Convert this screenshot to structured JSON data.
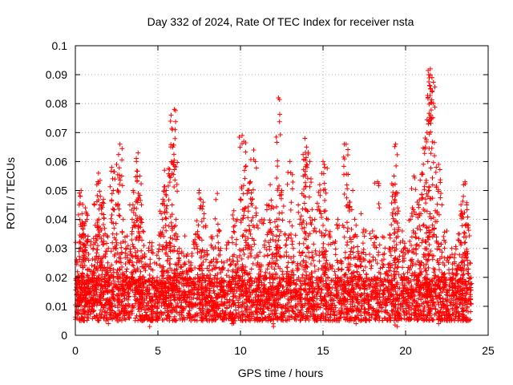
{
  "chart_data": {
    "type": "scatter",
    "title": "Day 332 of 2024, Rate Of TEC Index for receiver nsta",
    "xlabel": "GPS time / hours",
    "ylabel": "ROTI / TECUs",
    "xlim": [
      0,
      25
    ],
    "ylim": [
      0,
      0.1
    ],
    "x_ticks": [
      0,
      5,
      10,
      15,
      20,
      25
    ],
    "x_tick_labels": [
      "0",
      "5",
      "10",
      "15",
      "20",
      "25"
    ],
    "y_ticks": [
      0,
      0.01,
      0.02,
      0.03,
      0.04,
      0.05,
      0.06,
      0.07,
      0.08,
      0.09,
      0.1
    ],
    "y_tick_labels": [
      "0",
      "0.01",
      "0.02",
      "0.03",
      "0.04",
      "0.05",
      "0.06",
      "0.07",
      "0.08",
      "0.09",
      "0.1"
    ],
    "grid": true,
    "marker": "+",
    "series": [
      {
        "name": "ROTI",
        "color": "#ff0000",
        "points": [
          [
            0.1,
            0.011
          ],
          [
            0.2,
            0.018
          ],
          [
            0.25,
            0.03
          ],
          [
            0.3,
            0.048
          ],
          [
            0.35,
            0.05
          ],
          [
            0.4,
            0.042
          ],
          [
            0.5,
            0.035
          ],
          [
            0.6,
            0.044
          ],
          [
            0.7,
            0.04
          ],
          [
            0.8,
            0.028
          ],
          [
            1.0,
            0.022
          ],
          [
            1.2,
            0.038
          ],
          [
            1.3,
            0.052
          ],
          [
            1.4,
            0.056
          ],
          [
            1.5,
            0.045
          ],
          [
            1.6,
            0.042
          ],
          [
            1.7,
            0.047
          ],
          [
            1.8,
            0.035
          ],
          [
            2.0,
            0.03
          ],
          [
            2.2,
            0.058
          ],
          [
            2.3,
            0.05
          ],
          [
            2.5,
            0.059
          ],
          [
            2.7,
            0.066
          ],
          [
            2.9,
            0.04
          ],
          [
            3.1,
            0.03
          ],
          [
            3.3,
            0.045
          ],
          [
            3.5,
            0.05
          ],
          [
            3.7,
            0.06
          ],
          [
            3.8,
            0.063
          ],
          [
            3.9,
            0.055
          ],
          [
            4.0,
            0.04
          ],
          [
            4.2,
            0.028
          ],
          [
            4.5,
            0.032
          ],
          [
            4.8,
            0.025
          ],
          [
            5.0,
            0.018
          ],
          [
            5.2,
            0.042
          ],
          [
            5.3,
            0.047
          ],
          [
            5.4,
            0.057
          ],
          [
            5.5,
            0.05
          ],
          [
            5.7,
            0.032
          ],
          [
            5.8,
            0.076
          ],
          [
            5.9,
            0.065
          ],
          [
            6.0,
            0.078
          ],
          [
            6.1,
            0.04
          ],
          [
            6.3,
            0.03
          ],
          [
            6.5,
            0.022
          ],
          [
            6.8,
            0.028
          ],
          [
            7.0,
            0.025
          ],
          [
            7.3,
            0.035
          ],
          [
            7.5,
            0.05
          ],
          [
            7.6,
            0.047
          ],
          [
            7.8,
            0.042
          ],
          [
            8.0,
            0.028
          ],
          [
            8.3,
            0.034
          ],
          [
            8.6,
            0.049
          ],
          [
            8.8,
            0.03
          ],
          [
            9.0,
            0.025
          ],
          [
            9.3,
            0.032
          ],
          [
            9.6,
            0.043
          ],
          [
            9.8,
            0.04
          ],
          [
            10.1,
            0.069
          ],
          [
            10.2,
            0.067
          ],
          [
            10.3,
            0.044
          ],
          [
            10.5,
            0.05
          ],
          [
            10.6,
            0.053
          ],
          [
            10.8,
            0.064
          ],
          [
            11.0,
            0.038
          ],
          [
            11.3,
            0.04
          ],
          [
            11.6,
            0.045
          ],
          [
            11.8,
            0.052
          ],
          [
            12.0,
            0.044
          ],
          [
            12.2,
            0.04
          ],
          [
            12.3,
            0.082
          ],
          [
            12.5,
            0.05
          ],
          [
            12.7,
            0.035
          ],
          [
            13.0,
            0.06
          ],
          [
            13.2,
            0.03
          ],
          [
            13.5,
            0.045
          ],
          [
            13.8,
            0.055
          ],
          [
            13.9,
            0.068
          ],
          [
            14.0,
            0.065
          ],
          [
            14.2,
            0.06
          ],
          [
            14.5,
            0.04
          ],
          [
            14.8,
            0.052
          ],
          [
            15.0,
            0.06
          ],
          [
            15.1,
            0.058
          ],
          [
            15.3,
            0.04
          ],
          [
            15.6,
            0.032
          ],
          [
            15.9,
            0.04
          ],
          [
            16.2,
            0.038
          ],
          [
            16.4,
            0.066
          ],
          [
            16.5,
            0.045
          ],
          [
            16.6,
            0.046
          ],
          [
            16.8,
            0.05
          ],
          [
            17.0,
            0.038
          ],
          [
            17.3,
            0.042
          ],
          [
            17.6,
            0.036
          ],
          [
            18.0,
            0.036
          ],
          [
            18.3,
            0.053
          ],
          [
            18.6,
            0.034
          ],
          [
            19.0,
            0.03
          ],
          [
            19.2,
            0.048
          ],
          [
            19.3,
            0.055
          ],
          [
            19.4,
            0.066
          ],
          [
            19.5,
            0.042
          ],
          [
            19.8,
            0.036
          ],
          [
            20.0,
            0.03
          ],
          [
            20.3,
            0.04
          ],
          [
            20.5,
            0.055
          ],
          [
            20.7,
            0.046
          ],
          [
            20.8,
            0.045
          ],
          [
            21.0,
            0.056
          ],
          [
            21.2,
            0.065
          ],
          [
            21.3,
            0.07
          ],
          [
            21.4,
            0.09
          ],
          [
            21.5,
            0.092
          ],
          [
            21.6,
            0.089
          ],
          [
            21.8,
            0.043
          ],
          [
            22.0,
            0.059
          ],
          [
            22.2,
            0.045
          ],
          [
            22.5,
            0.036
          ],
          [
            22.8,
            0.03
          ],
          [
            23.0,
            0.028
          ],
          [
            23.2,
            0.035
          ],
          [
            23.4,
            0.042
          ],
          [
            23.5,
            0.048
          ],
          [
            23.6,
            0.053
          ],
          [
            23.7,
            0.045
          ],
          [
            23.8,
            0.038
          ],
          [
            23.9,
            0.025
          ],
          [
            0.5,
            0.005
          ],
          [
            2.0,
            0.004
          ],
          [
            4.5,
            0.003
          ],
          [
            7.0,
            0.005
          ],
          [
            9.5,
            0.004
          ],
          [
            12.0,
            0.003
          ],
          [
            14.5,
            0.005
          ],
          [
            17.0,
            0.004
          ],
          [
            19.5,
            0.003
          ],
          [
            22.0,
            0.004
          ]
        ],
        "baseline_band": {
          "x_range": [
            0,
            24
          ],
          "typical_range": [
            0.005,
            0.02
          ],
          "peak_envelope": "spiky"
        }
      }
    ]
  }
}
